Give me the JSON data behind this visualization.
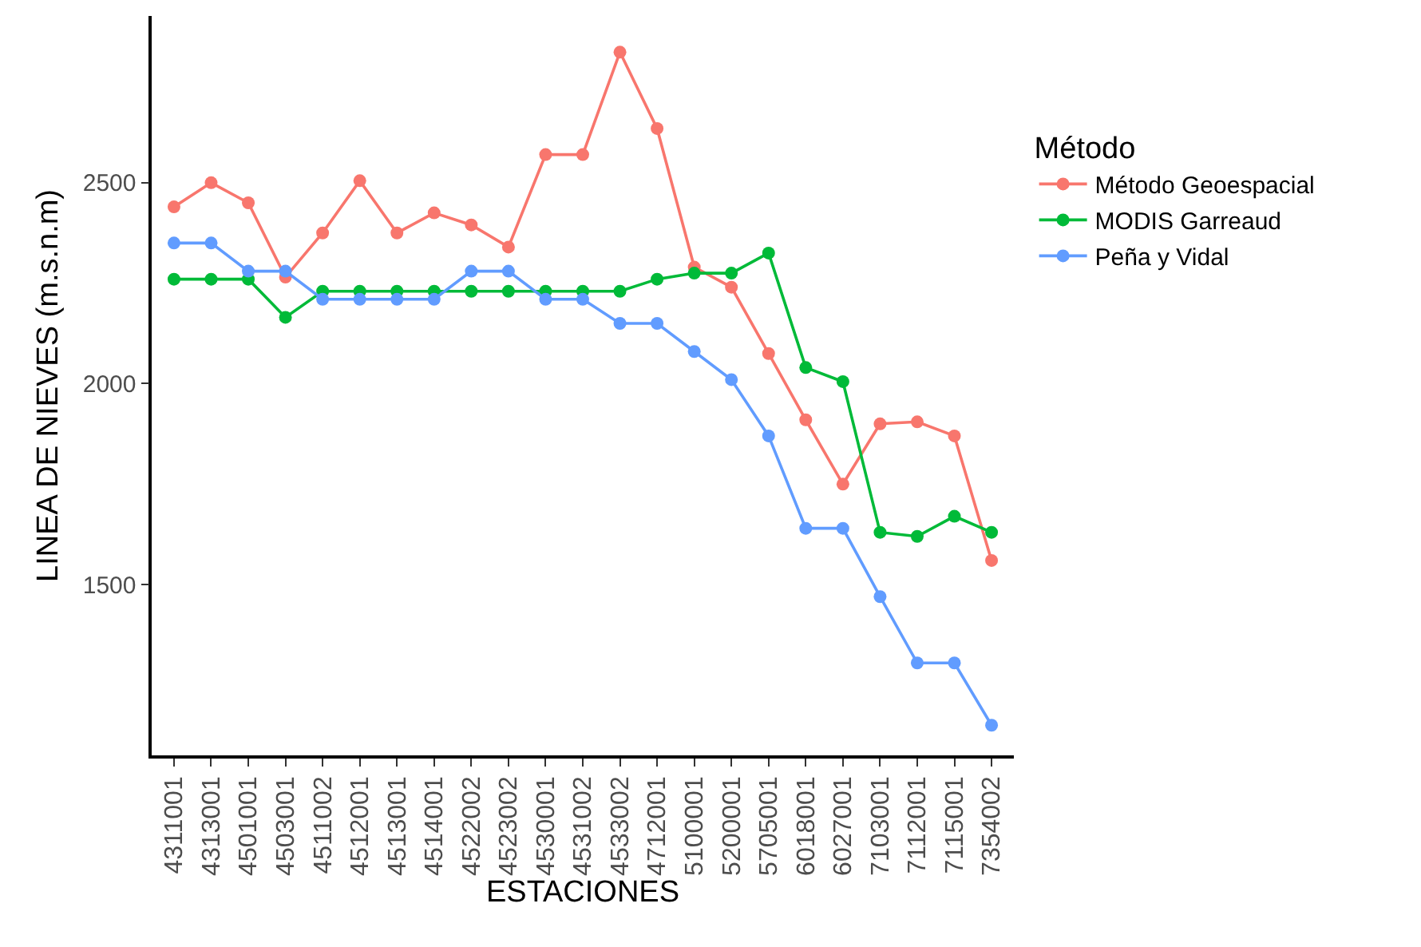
{
  "chart_data": {
    "type": "line",
    "xlabel": "ESTACIONES",
    "ylabel": "LINEA DE NIEVES (m.s.n.m)",
    "legend_title": "Método",
    "legend": "right",
    "grid": false,
    "marker": "circle",
    "line_style": "solid",
    "categories": [
      "4311001",
      "4313001",
      "4501001",
      "4503001",
      "4511002",
      "4512001",
      "4513001",
      "4514001",
      "4522002",
      "4523002",
      "4530001",
      "4531002",
      "4533002",
      "4712001",
      "5100001",
      "5200001",
      "5705001",
      "6018001",
      "6027001",
      "7103001",
      "7112001",
      "7115001",
      "7354002"
    ],
    "ylim": [
      1075,
      2915
    ],
    "yticks": [
      1500,
      2000,
      2500
    ],
    "series": [
      {
        "name": "Método Geoespacial",
        "color": "#f8766d",
        "values": [
          2440,
          2500,
          2450,
          2265,
          2375,
          2505,
          2375,
          2425,
          2395,
          2340,
          2570,
          2570,
          2825,
          2635,
          2290,
          2240,
          2075,
          1910,
          1750,
          1900,
          1905,
          1870,
          1560
        ]
      },
      {
        "name": "MODIS Garreaud",
        "color": "#00ba38",
        "values": [
          2260,
          2260,
          2260,
          2165,
          2230,
          2230,
          2230,
          2230,
          2230,
          2230,
          2230,
          2230,
          2230,
          2260,
          2275,
          2275,
          2325,
          2040,
          2005,
          1630,
          1620,
          1670,
          1630
        ]
      },
      {
        "name": "Peña y Vidal",
        "color": "#619cff",
        "values": [
          2350,
          2350,
          2280,
          2280,
          2210,
          2210,
          2210,
          2210,
          2280,
          2280,
          2210,
          2210,
          2150,
          2150,
          2080,
          2010,
          1870,
          1640,
          1640,
          1470,
          1305,
          1305,
          1150
        ]
      }
    ]
  }
}
